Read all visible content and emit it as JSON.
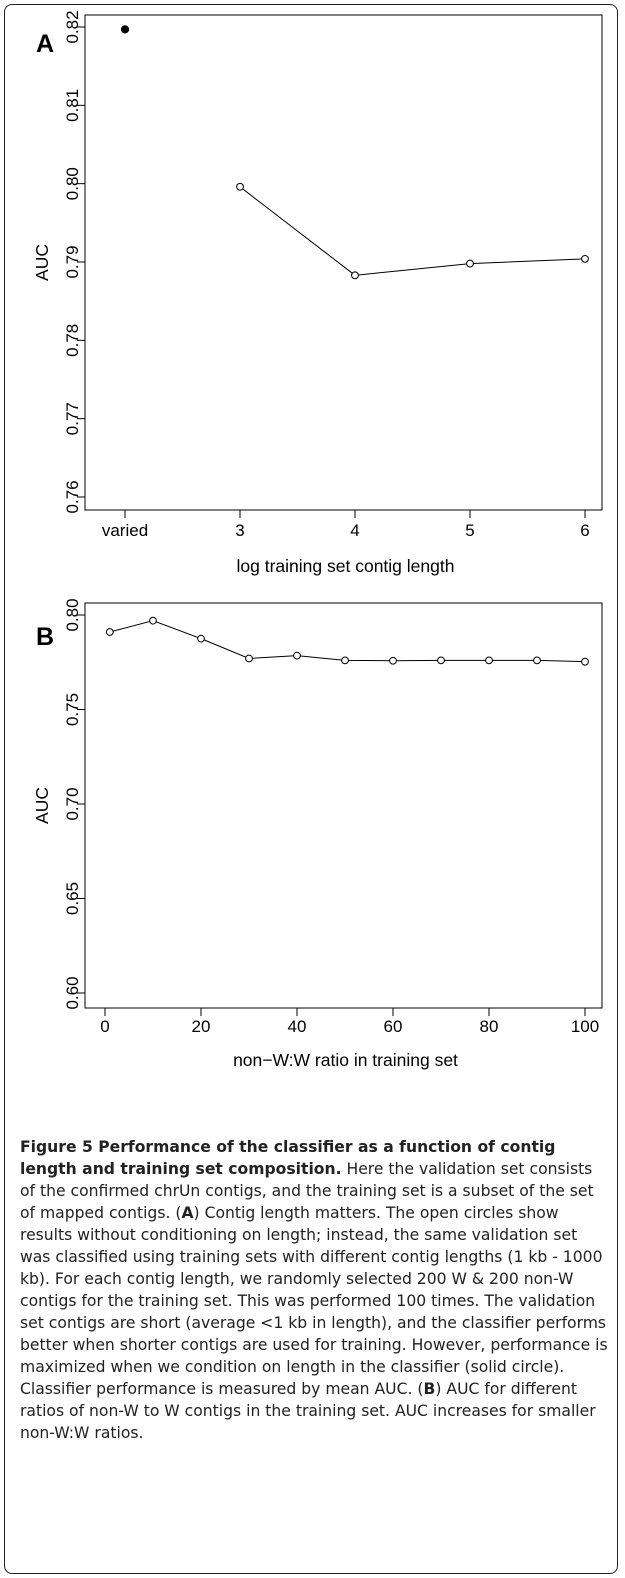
{
  "chart_data": [
    {
      "panel": "A",
      "type": "line",
      "xlabel": "log training set contig length",
      "ylabel": "AUC",
      "categories": [
        "varied",
        "3",
        "4",
        "5",
        "6"
      ],
      "ylim": [
        0.76,
        0.82
      ],
      "yticks": [
        "0.76",
        "0.77",
        "0.78",
        "0.79",
        "0.80",
        "0.81",
        "0.82"
      ],
      "points": [
        {
          "x": "varied",
          "y": 0.8197,
          "marker": "solid"
        },
        {
          "x": "3",
          "y": 0.7996,
          "marker": "open"
        },
        {
          "x": "4",
          "y": 0.7883,
          "marker": "open"
        },
        {
          "x": "5",
          "y": 0.7898,
          "marker": "open"
        },
        {
          "x": "6",
          "y": 0.7904,
          "marker": "open"
        }
      ],
      "line_connects": [
        "3",
        "4",
        "5",
        "6"
      ],
      "grid": false,
      "legend": "none"
    },
    {
      "panel": "B",
      "type": "line",
      "xlabel": "non−W:W ratio in training set",
      "ylabel": "AUC",
      "xlim": [
        0,
        100
      ],
      "xticks": [
        0,
        20,
        40,
        60,
        80,
        100
      ],
      "ylim": [
        0.6,
        0.8
      ],
      "yticks": [
        "0.60",
        "0.65",
        "0.70",
        "0.75",
        "0.80"
      ],
      "x": [
        1,
        10,
        20,
        30,
        40,
        50,
        60,
        70,
        80,
        90,
        100
      ],
      "y": [
        0.791,
        0.797,
        0.7875,
        0.777,
        0.7785,
        0.776,
        0.7758,
        0.776,
        0.776,
        0.776,
        0.7753
      ],
      "marker": "open",
      "grid": false,
      "legend": "none"
    }
  ],
  "caption": {
    "title": "Figure 5 Performance of the classifier as a function of contig length and training set composition.",
    "parts": [
      {
        "text": " Here the validation set consists of the confirmed chrUn contigs, and the training set is a subset of the set of mapped contigs. (",
        "bold": false
      },
      {
        "text": "A",
        "bold": true
      },
      {
        "text": ") Contig length matters. The open circles show results without conditioning on length; instead, the same validation set was classified using training sets with different contig lengths (1 kb - 1000 kb). For each contig length, we randomly selected 200 W & 200 non-W contigs for the training set. This was performed 100 times. The validation set contigs are short (average <1 kb in length), and the classifier performs better when shorter contigs are used for training. However, performance is maximized when we condition on length in the classifier (solid circle). Classifier performance is measured by mean AUC. (",
        "bold": false
      },
      {
        "text": "B",
        "bold": true
      },
      {
        "text": ") AUC for different ratios of non-W to W contigs in the training set. AUC increases for smaller non-W:W ratios.",
        "bold": false
      }
    ]
  }
}
